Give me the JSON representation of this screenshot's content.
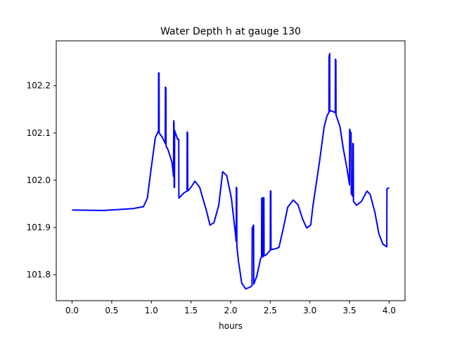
{
  "chart_data": {
    "type": "line",
    "title": "Water Depth h at gauge 130",
    "xlabel": "hours",
    "ylabel": "",
    "xlim": [
      -0.2,
      4.2
    ],
    "ylim": [
      101.745,
      102.295
    ],
    "xticks": [
      0.0,
      0.5,
      1.0,
      1.5,
      2.0,
      2.5,
      3.0,
      3.5,
      4.0
    ],
    "xtick_labels": [
      "0.0",
      "0.5",
      "1.0",
      "1.5",
      "2.0",
      "2.5",
      "3.0",
      "3.5",
      "4.0"
    ],
    "yticks": [
      101.8,
      101.9,
      102.0,
      102.1,
      102.2
    ],
    "ytick_labels": [
      "101.8",
      "101.9",
      "102.0",
      "102.1",
      "102.2"
    ],
    "grid": false,
    "series": [
      {
        "name": "h",
        "color": "#0000ff",
        "points": [
          [
            0.0,
            101.937
          ],
          [
            0.4,
            101.936
          ],
          [
            0.77,
            101.94
          ],
          [
            0.9,
            101.944
          ],
          [
            0.95,
            101.962
          ],
          [
            0.99,
            102.015
          ],
          [
            1.05,
            102.09
          ],
          [
            1.09,
            102.104
          ],
          [
            1.092,
            102.227
          ],
          [
            1.097,
            102.227
          ],
          [
            1.099,
            102.1
          ],
          [
            1.14,
            102.09
          ],
          [
            1.175,
            102.078
          ],
          [
            1.177,
            102.197
          ],
          [
            1.183,
            102.195
          ],
          [
            1.186,
            102.072
          ],
          [
            1.21,
            102.065
          ],
          [
            1.26,
            102.038
          ],
          [
            1.28,
            102.008
          ],
          [
            1.282,
            102.126
          ],
          [
            1.286,
            102.12
          ],
          [
            1.288,
            101.985
          ],
          [
            1.292,
            101.985
          ],
          [
            1.294,
            102.105
          ],
          [
            1.33,
            102.087
          ],
          [
            1.345,
            102.087
          ],
          [
            1.347,
            101.962
          ],
          [
            1.41,
            101.973
          ],
          [
            1.45,
            101.977
          ],
          [
            1.452,
            102.102
          ],
          [
            1.457,
            102.1
          ],
          [
            1.459,
            101.977
          ],
          [
            1.5,
            101.985
          ],
          [
            1.55,
            101.998
          ],
          [
            1.61,
            101.985
          ],
          [
            1.7,
            101.932
          ],
          [
            1.74,
            101.905
          ],
          [
            1.79,
            101.91
          ],
          [
            1.85,
            101.947
          ],
          [
            1.9,
            102.018
          ],
          [
            1.95,
            102.01
          ],
          [
            2.01,
            101.962
          ],
          [
            2.06,
            101.887
          ],
          [
            2.07,
            101.87
          ],
          [
            2.072,
            101.985
          ],
          [
            2.077,
            101.983
          ],
          [
            2.079,
            101.86
          ],
          [
            2.1,
            101.827
          ],
          [
            2.14,
            101.782
          ],
          [
            2.19,
            101.77
          ],
          [
            2.25,
            101.774
          ],
          [
            2.27,
            101.777
          ],
          [
            2.272,
            101.899
          ],
          [
            2.29,
            101.905
          ],
          [
            2.292,
            101.78
          ],
          [
            2.33,
            101.797
          ],
          [
            2.38,
            101.835
          ],
          [
            2.39,
            101.838
          ],
          [
            2.392,
            101.962
          ],
          [
            2.4,
            101.962
          ],
          [
            2.402,
            101.838
          ],
          [
            2.41,
            101.838
          ],
          [
            2.412,
            101.963
          ],
          [
            2.42,
            101.963
          ],
          [
            2.422,
            101.84
          ],
          [
            2.45,
            101.842
          ],
          [
            2.5,
            101.852
          ],
          [
            2.502,
            101.977
          ],
          [
            2.507,
            101.977
          ],
          [
            2.509,
            101.853
          ],
          [
            2.57,
            101.855
          ],
          [
            2.61,
            101.858
          ],
          [
            2.67,
            101.902
          ],
          [
            2.72,
            101.943
          ],
          [
            2.79,
            101.958
          ],
          [
            2.85,
            101.948
          ],
          [
            2.91,
            101.917
          ],
          [
            2.96,
            101.899
          ],
          [
            3.01,
            101.905
          ],
          [
            3.04,
            101.947
          ],
          [
            3.12,
            102.038
          ],
          [
            3.18,
            102.113
          ],
          [
            3.22,
            102.138
          ],
          [
            3.24,
            102.143
          ],
          [
            3.242,
            102.262
          ],
          [
            3.25,
            102.268
          ],
          [
            3.252,
            102.146
          ],
          [
            3.27,
            102.147
          ],
          [
            3.32,
            102.143
          ],
          [
            3.322,
            102.256
          ],
          [
            3.328,
            102.254
          ],
          [
            3.33,
            102.138
          ],
          [
            3.38,
            102.113
          ],
          [
            3.42,
            102.068
          ],
          [
            3.47,
            102.023
          ],
          [
            3.5,
            101.99
          ],
          [
            3.502,
            102.108
          ],
          [
            3.51,
            102.103
          ],
          [
            3.52,
            102.1
          ],
          [
            3.522,
            101.972
          ],
          [
            3.54,
            101.966
          ],
          [
            3.542,
            102.078
          ],
          [
            3.548,
            102.076
          ],
          [
            3.55,
            101.955
          ],
          [
            3.59,
            101.947
          ],
          [
            3.65,
            101.955
          ],
          [
            3.72,
            101.977
          ],
          [
            3.76,
            101.97
          ],
          [
            3.82,
            101.932
          ],
          [
            3.87,
            101.887
          ],
          [
            3.92,
            101.865
          ],
          [
            3.97,
            101.859
          ],
          [
            3.972,
            101.982
          ],
          [
            4.0,
            101.984
          ]
        ]
      }
    ]
  }
}
